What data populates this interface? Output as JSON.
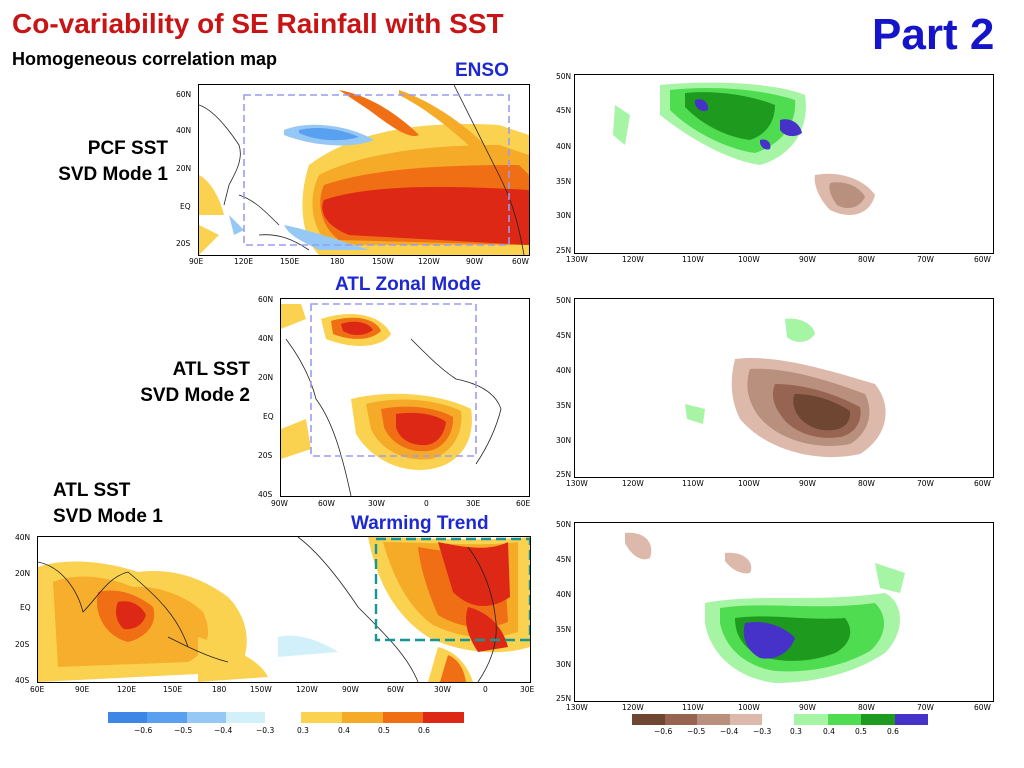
{
  "header": {
    "title": "Co-variability of SE Rainfall with SST",
    "subtitle": "Homogeneous correlation map",
    "part": "Part 2"
  },
  "modes": [
    {
      "title": "ENSO",
      "label_line1": "PCF SST",
      "label_line2": "SVD Mode 1",
      "sst_lat_ticks": [
        "60N",
        "40N",
        "20N",
        "EQ",
        "20S"
      ],
      "sst_lon_ticks": [
        "90E",
        "120E",
        "150E",
        "180",
        "150W",
        "120W",
        "90W",
        "60W"
      ],
      "us_lat_ticks": [
        "50N",
        "45N",
        "40N",
        "35N",
        "30N",
        "25N"
      ],
      "us_lon_ticks": [
        "130W",
        "120W",
        "110W",
        "100W",
        "90W",
        "80W",
        "70W",
        "60W"
      ]
    },
    {
      "title": "ATL Zonal Mode",
      "label_line1": "ATL SST",
      "label_line2": "SVD Mode 2",
      "sst_lat_ticks": [
        "60N",
        "40N",
        "20N",
        "EQ",
        "20S",
        "40S"
      ],
      "sst_lon_ticks": [
        "90W",
        "60W",
        "30W",
        "0",
        "30E",
        "60E"
      ],
      "us_lat_ticks": [
        "50N",
        "45N",
        "40N",
        "35N",
        "30N",
        "25N"
      ],
      "us_lon_ticks": [
        "130W",
        "120W",
        "110W",
        "100W",
        "90W",
        "80W",
        "70W",
        "60W"
      ]
    },
    {
      "title": "Warming Trend",
      "label_line1": "ATL SST",
      "label_line2": "SVD Mode 1",
      "sst_lat_ticks": [
        "40N",
        "20N",
        "EQ",
        "20S",
        "40S"
      ],
      "sst_lon_ticks": [
        "60E",
        "90E",
        "120E",
        "150E",
        "180",
        "150W",
        "120W",
        "90W",
        "60W",
        "30W",
        "0",
        "30E"
      ],
      "us_lat_ticks": [
        "50N",
        "45N",
        "40N",
        "35N",
        "30N",
        "25N"
      ],
      "us_lon_ticks": [
        "130W",
        "120W",
        "110W",
        "100W",
        "90W",
        "80W",
        "70W",
        "60W"
      ]
    }
  ],
  "sst_colorbar": {
    "labels": [
      "−0.6",
      "−0.5",
      "−0.4",
      "−0.3",
      "0.3",
      "0.4",
      "0.5",
      "0.6"
    ],
    "neg_colors": [
      "#3c87e6",
      "#5aa0f0",
      "#96c8f5",
      "#d2f0fa"
    ],
    "pos_colors": [
      "#fad250",
      "#f5aa28",
      "#f06e14",
      "#dc2814"
    ]
  },
  "rain_colorbar": {
    "labels": [
      "−0.6",
      "−0.5",
      "−0.4",
      "−0.3",
      "0.3",
      "0.4",
      "0.5",
      "0.6"
    ],
    "neg_colors": [
      "#6e4632",
      "#966450",
      "#b9907d",
      "#dcb9aa"
    ],
    "pos_colors": [
      "#a5f5a5",
      "#50dc50",
      "#1e9b1e",
      "#4632c8"
    ]
  }
}
